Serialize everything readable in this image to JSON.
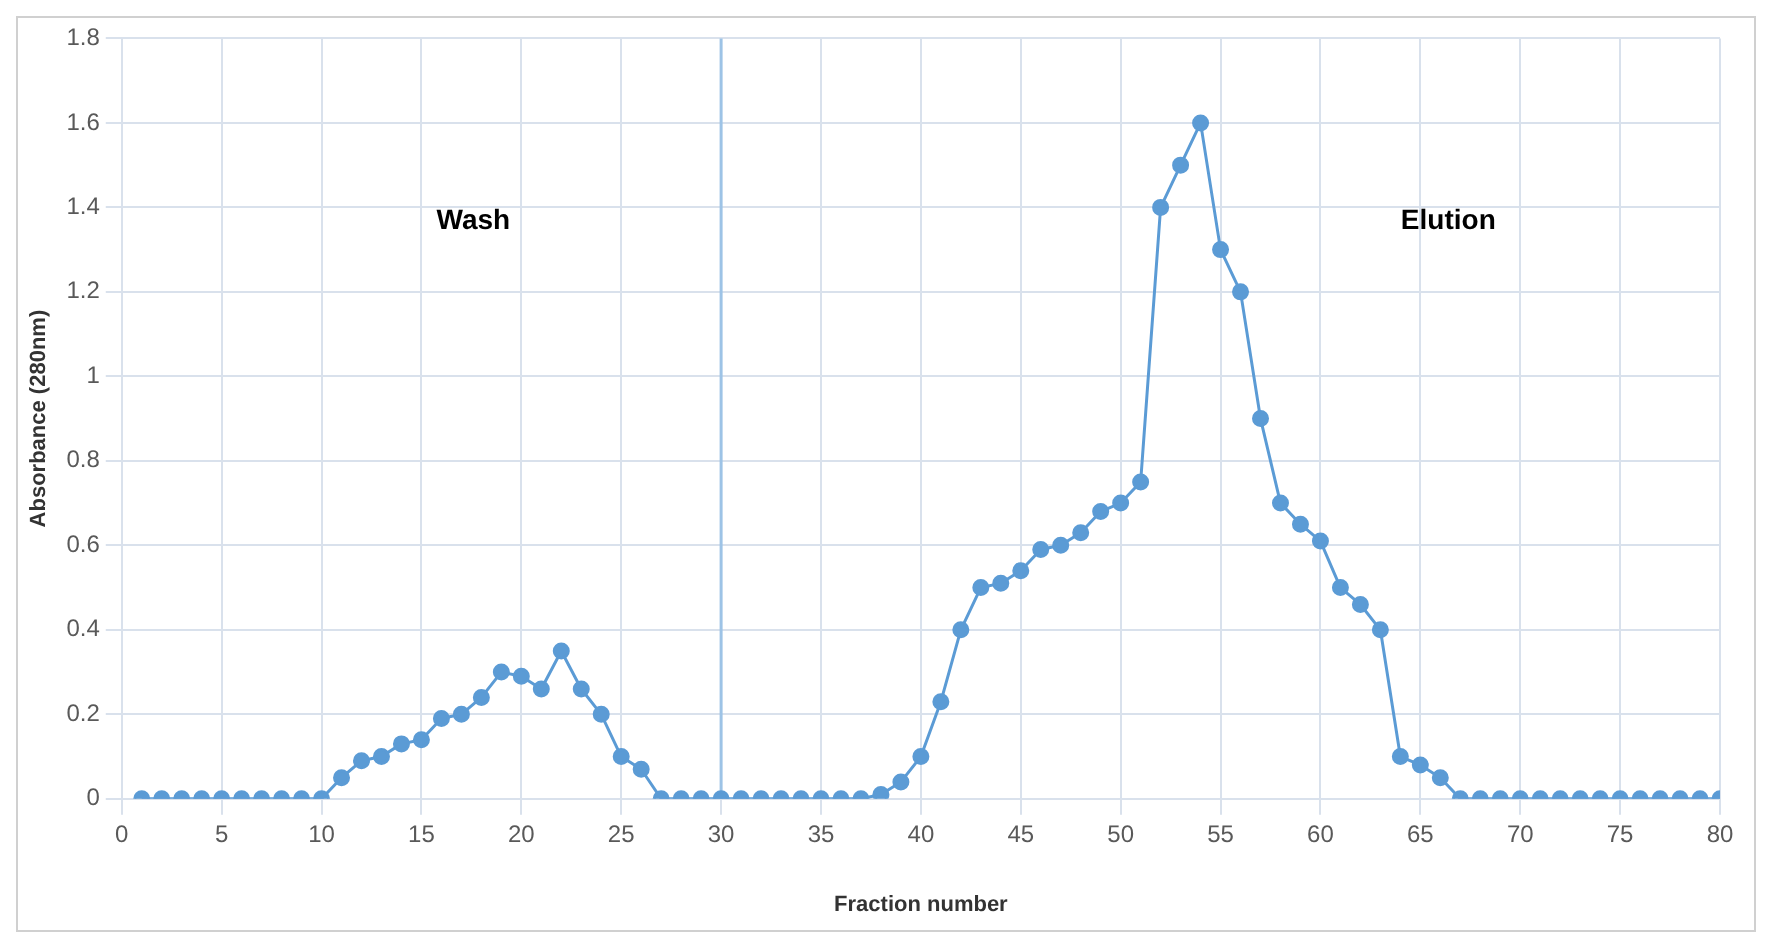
{
  "chart_data": {
    "type": "line",
    "xlabel": "Fraction number",
    "ylabel": "Absorbance (280nm)",
    "x": [
      1,
      2,
      3,
      4,
      5,
      6,
      7,
      8,
      9,
      10,
      11,
      12,
      13,
      14,
      15,
      16,
      17,
      18,
      19,
      20,
      21,
      22,
      23,
      24,
      25,
      26,
      27,
      28,
      29,
      30,
      31,
      32,
      33,
      34,
      35,
      36,
      37,
      38,
      39,
      40,
      41,
      42,
      43,
      44,
      45,
      46,
      47,
      48,
      49,
      50,
      51,
      52,
      53,
      54,
      55,
      56,
      57,
      58,
      59,
      60,
      61,
      62,
      63,
      64,
      65,
      66,
      67,
      68,
      69,
      70,
      71,
      72,
      73,
      74,
      75,
      76,
      77,
      78,
      79,
      80
    ],
    "series": [
      {
        "color": "#5b9bd5",
        "values": [
          0,
          0,
          0,
          0,
          0,
          0,
          0,
          0,
          0,
          0,
          0.05,
          0.09,
          0.1,
          0.13,
          0.14,
          0.19,
          0.2,
          0.24,
          0.3,
          0.29,
          0.26,
          0.35,
          0.26,
          0.2,
          0.1,
          0.07,
          0,
          0,
          0,
          0,
          0,
          0,
          0,
          0,
          0,
          0,
          0,
          0.01,
          0.04,
          0.1,
          0.23,
          0.4,
          0.5,
          0.51,
          0.54,
          0.59,
          0.6,
          0.63,
          0.68,
          0.7,
          0.75,
          1.4,
          1.5,
          1.6,
          1.3,
          1.2,
          0.9,
          0.7,
          0.65,
          0.61,
          0.5,
          0.46,
          0.4,
          0.1,
          0.08,
          0.05,
          0,
          0,
          0,
          0,
          0,
          0,
          0,
          0,
          0,
          0,
          0,
          0,
          0,
          0
        ]
      }
    ],
    "xlim": [
      0,
      80
    ],
    "xticks": [
      0,
      5,
      10,
      15,
      20,
      25,
      30,
      35,
      40,
      45,
      50,
      55,
      60,
      65,
      70,
      75,
      80
    ],
    "ylim": [
      0,
      1.8
    ],
    "yticks": [
      0,
      0.2,
      0.4,
      0.6,
      0.8,
      1,
      1.2,
      1.4,
      1.6,
      1.8
    ],
    "ref_lines": [
      {
        "axis": "x",
        "value": 30,
        "color": "#9dc3e6"
      }
    ],
    "annotations": [
      "Wash",
      "Elution"
    ],
    "grid": true,
    "marker": "circle",
    "line_style": "solid",
    "legend": false
  }
}
